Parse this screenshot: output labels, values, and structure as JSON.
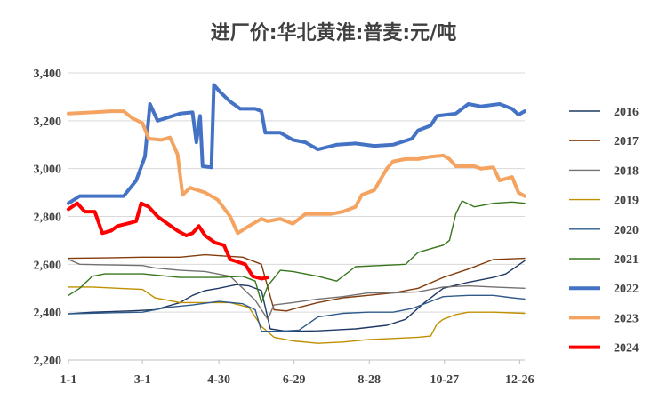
{
  "chart_data": {
    "type": "line",
    "title": "进厂价:华北黄淮:普麦:元/吨",
    "xlabel": "",
    "ylabel": "",
    "x_range": [
      1,
      365
    ],
    "x_ticks": [
      {
        "day": 1,
        "label": "1-1"
      },
      {
        "day": 60,
        "label": "3-1"
      },
      {
        "day": 121,
        "label": "4-30"
      },
      {
        "day": 181,
        "label": "6-29"
      },
      {
        "day": 241,
        "label": "8-28"
      },
      {
        "day": 301,
        "label": "10-27"
      },
      {
        "day": 361,
        "label": "12-26"
      }
    ],
    "y_range": [
      2200,
      3400
    ],
    "y_ticks": [
      {
        "value": 2200,
        "label": "2,200"
      },
      {
        "value": 2400,
        "label": "2,400"
      },
      {
        "value": 2600,
        "label": "2,600"
      },
      {
        "value": 2800,
        "label": "2,800"
      },
      {
        "value": 3000,
        "label": "3,000"
      },
      {
        "value": 3200,
        "label": "3,200"
      },
      {
        "value": 3400,
        "label": "3,400"
      }
    ],
    "grid": "horizontal",
    "legend_position": "right",
    "series": [
      {
        "name": "2016",
        "color": "#1f3864",
        "width": 1.4,
        "points": [
          [
            1,
            2393
          ],
          [
            20,
            2400
          ],
          [
            50,
            2405
          ],
          [
            70,
            2410
          ],
          [
            90,
            2440
          ],
          [
            100,
            2470
          ],
          [
            110,
            2490
          ],
          [
            121,
            2500
          ],
          [
            135,
            2515
          ],
          [
            145,
            2510
          ],
          [
            155,
            2490
          ],
          [
            162,
            2330
          ],
          [
            175,
            2320
          ],
          [
            200,
            2322
          ],
          [
            230,
            2330
          ],
          [
            255,
            2345
          ],
          [
            270,
            2370
          ],
          [
            285,
            2440
          ],
          [
            300,
            2500
          ],
          [
            320,
            2525
          ],
          [
            340,
            2545
          ],
          [
            350,
            2560
          ],
          [
            365,
            2615
          ]
        ]
      },
      {
        "name": "2017",
        "color": "#843c0c",
        "width": 1.4,
        "points": [
          [
            1,
            2625
          ],
          [
            30,
            2627
          ],
          [
            60,
            2630
          ],
          [
            90,
            2630
          ],
          [
            110,
            2640
          ],
          [
            140,
            2630
          ],
          [
            155,
            2600
          ],
          [
            165,
            2410
          ],
          [
            175,
            2405
          ],
          [
            185,
            2420
          ],
          [
            200,
            2440
          ],
          [
            220,
            2460
          ],
          [
            240,
            2470
          ],
          [
            260,
            2480
          ],
          [
            280,
            2500
          ],
          [
            300,
            2545
          ],
          [
            320,
            2580
          ],
          [
            340,
            2620
          ],
          [
            365,
            2625
          ]
        ]
      },
      {
        "name": "2018",
        "color": "#767171",
        "width": 1.4,
        "points": [
          [
            1,
            2620
          ],
          [
            10,
            2600
          ],
          [
            30,
            2598
          ],
          [
            60,
            2595
          ],
          [
            70,
            2585
          ],
          [
            90,
            2575
          ],
          [
            110,
            2570
          ],
          [
            130,
            2550
          ],
          [
            150,
            2450
          ],
          [
            160,
            2370
          ],
          [
            165,
            2430
          ],
          [
            180,
            2440
          ],
          [
            200,
            2455
          ],
          [
            220,
            2465
          ],
          [
            240,
            2480
          ],
          [
            260,
            2480
          ],
          [
            280,
            2485
          ],
          [
            300,
            2505
          ],
          [
            320,
            2510
          ],
          [
            340,
            2505
          ],
          [
            365,
            2500
          ]
        ]
      },
      {
        "name": "2019",
        "color": "#bf9000",
        "width": 1.4,
        "points": [
          [
            1,
            2505
          ],
          [
            20,
            2505
          ],
          [
            40,
            2500
          ],
          [
            60,
            2495
          ],
          [
            70,
            2460
          ],
          [
            90,
            2440
          ],
          [
            110,
            2440
          ],
          [
            130,
            2440
          ],
          [
            145,
            2420
          ],
          [
            155,
            2340
          ],
          [
            165,
            2295
          ],
          [
            180,
            2280
          ],
          [
            200,
            2270
          ],
          [
            220,
            2275
          ],
          [
            240,
            2285
          ],
          [
            260,
            2290
          ],
          [
            280,
            2295
          ],
          [
            290,
            2300
          ],
          [
            295,
            2350
          ],
          [
            300,
            2370
          ],
          [
            310,
            2390
          ],
          [
            320,
            2400
          ],
          [
            340,
            2400
          ],
          [
            365,
            2395
          ]
        ]
      },
      {
        "name": "2020",
        "color": "#2e5b8a",
        "width": 1.4,
        "points": [
          [
            1,
            2393
          ],
          [
            30,
            2397
          ],
          [
            60,
            2400
          ],
          [
            80,
            2420
          ],
          [
            100,
            2430
          ],
          [
            121,
            2445
          ],
          [
            140,
            2435
          ],
          [
            150,
            2410
          ],
          [
            155,
            2320
          ],
          [
            170,
            2320
          ],
          [
            185,
            2325
          ],
          [
            200,
            2380
          ],
          [
            220,
            2395
          ],
          [
            240,
            2400
          ],
          [
            260,
            2400
          ],
          [
            275,
            2415
          ],
          [
            290,
            2445
          ],
          [
            300,
            2465
          ],
          [
            320,
            2470
          ],
          [
            340,
            2470
          ],
          [
            355,
            2460
          ],
          [
            365,
            2455
          ]
        ]
      },
      {
        "name": "2021",
        "color": "#38761d",
        "width": 1.4,
        "points": [
          [
            1,
            2470
          ],
          [
            10,
            2500
          ],
          [
            20,
            2550
          ],
          [
            30,
            2560
          ],
          [
            60,
            2560
          ],
          [
            90,
            2545
          ],
          [
            121,
            2545
          ],
          [
            140,
            2550
          ],
          [
            150,
            2530
          ],
          [
            155,
            2440
          ],
          [
            160,
            2510
          ],
          [
            170,
            2575
          ],
          [
            180,
            2570
          ],
          [
            200,
            2550
          ],
          [
            215,
            2530
          ],
          [
            230,
            2590
          ],
          [
            250,
            2595
          ],
          [
            270,
            2600
          ],
          [
            280,
            2650
          ],
          [
            290,
            2665
          ],
          [
            300,
            2680
          ],
          [
            305,
            2700
          ],
          [
            310,
            2810
          ],
          [
            315,
            2865
          ],
          [
            325,
            2840
          ],
          [
            340,
            2855
          ],
          [
            355,
            2860
          ],
          [
            365,
            2855
          ]
        ]
      },
      {
        "name": "2022",
        "color": "#4472c4",
        "width": 4,
        "points": [
          [
            1,
            2855
          ],
          [
            10,
            2885
          ],
          [
            30,
            2885
          ],
          [
            45,
            2885
          ],
          [
            55,
            2950
          ],
          [
            62,
            3050
          ],
          [
            66,
            3270
          ],
          [
            72,
            3200
          ],
          [
            90,
            3230
          ],
          [
            100,
            3235
          ],
          [
            103,
            3110
          ],
          [
            106,
            3220
          ],
          [
            108,
            3010
          ],
          [
            115,
            3005
          ],
          [
            117,
            3350
          ],
          [
            122,
            3320
          ],
          [
            130,
            3280
          ],
          [
            138,
            3250
          ],
          [
            150,
            3250
          ],
          [
            155,
            3240
          ],
          [
            158,
            3150
          ],
          [
            170,
            3150
          ],
          [
            180,
            3120
          ],
          [
            190,
            3110
          ],
          [
            200,
            3080
          ],
          [
            215,
            3100
          ],
          [
            230,
            3105
          ],
          [
            245,
            3095
          ],
          [
            260,
            3100
          ],
          [
            275,
            3125
          ],
          [
            280,
            3160
          ],
          [
            290,
            3180
          ],
          [
            295,
            3220
          ],
          [
            310,
            3230
          ],
          [
            320,
            3270
          ],
          [
            330,
            3260
          ],
          [
            345,
            3270
          ],
          [
            355,
            3250
          ],
          [
            360,
            3225
          ],
          [
            365,
            3240
          ]
        ]
      },
      {
        "name": "2023",
        "color": "#f4a460",
        "width": 4,
        "points": [
          [
            1,
            3230
          ],
          [
            20,
            3235
          ],
          [
            35,
            3240
          ],
          [
            45,
            3240
          ],
          [
            52,
            3210
          ],
          [
            60,
            3190
          ],
          [
            65,
            3125
          ],
          [
            75,
            3120
          ],
          [
            82,
            3130
          ],
          [
            88,
            3060
          ],
          [
            92,
            2890
          ],
          [
            98,
            2920
          ],
          [
            110,
            2900
          ],
          [
            120,
            2870
          ],
          [
            130,
            2800
          ],
          [
            136,
            2730
          ],
          [
            145,
            2760
          ],
          [
            155,
            2790
          ],
          [
            160,
            2780
          ],
          [
            170,
            2790
          ],
          [
            180,
            2770
          ],
          [
            190,
            2810
          ],
          [
            200,
            2810
          ],
          [
            210,
            2810
          ],
          [
            220,
            2820
          ],
          [
            230,
            2840
          ],
          [
            235,
            2890
          ],
          [
            245,
            2910
          ],
          [
            255,
            3000
          ],
          [
            260,
            3030
          ],
          [
            270,
            3040
          ],
          [
            280,
            3040
          ],
          [
            290,
            3050
          ],
          [
            300,
            3055
          ],
          [
            305,
            3040
          ],
          [
            310,
            3010
          ],
          [
            325,
            3010
          ],
          [
            330,
            3000
          ],
          [
            340,
            3005
          ],
          [
            345,
            2950
          ],
          [
            355,
            2965
          ],
          [
            360,
            2900
          ],
          [
            365,
            2885
          ]
        ]
      },
      {
        "name": "2024",
        "color": "#ff0000",
        "width": 4,
        "points": [
          [
            1,
            2830
          ],
          [
            8,
            2855
          ],
          [
            14,
            2820
          ],
          [
            22,
            2820
          ],
          [
            28,
            2730
          ],
          [
            35,
            2740
          ],
          [
            40,
            2760
          ],
          [
            48,
            2770
          ],
          [
            55,
            2780
          ],
          [
            59,
            2855
          ],
          [
            65,
            2840
          ],
          [
            72,
            2800
          ],
          [
            80,
            2770
          ],
          [
            88,
            2740
          ],
          [
            95,
            2720
          ],
          [
            100,
            2730
          ],
          [
            105,
            2760
          ],
          [
            110,
            2720
          ],
          [
            118,
            2690
          ],
          [
            125,
            2680
          ],
          [
            130,
            2620
          ],
          [
            136,
            2610
          ],
          [
            142,
            2600
          ],
          [
            148,
            2550
          ],
          [
            155,
            2540
          ],
          [
            160,
            2545
          ]
        ]
      }
    ]
  }
}
